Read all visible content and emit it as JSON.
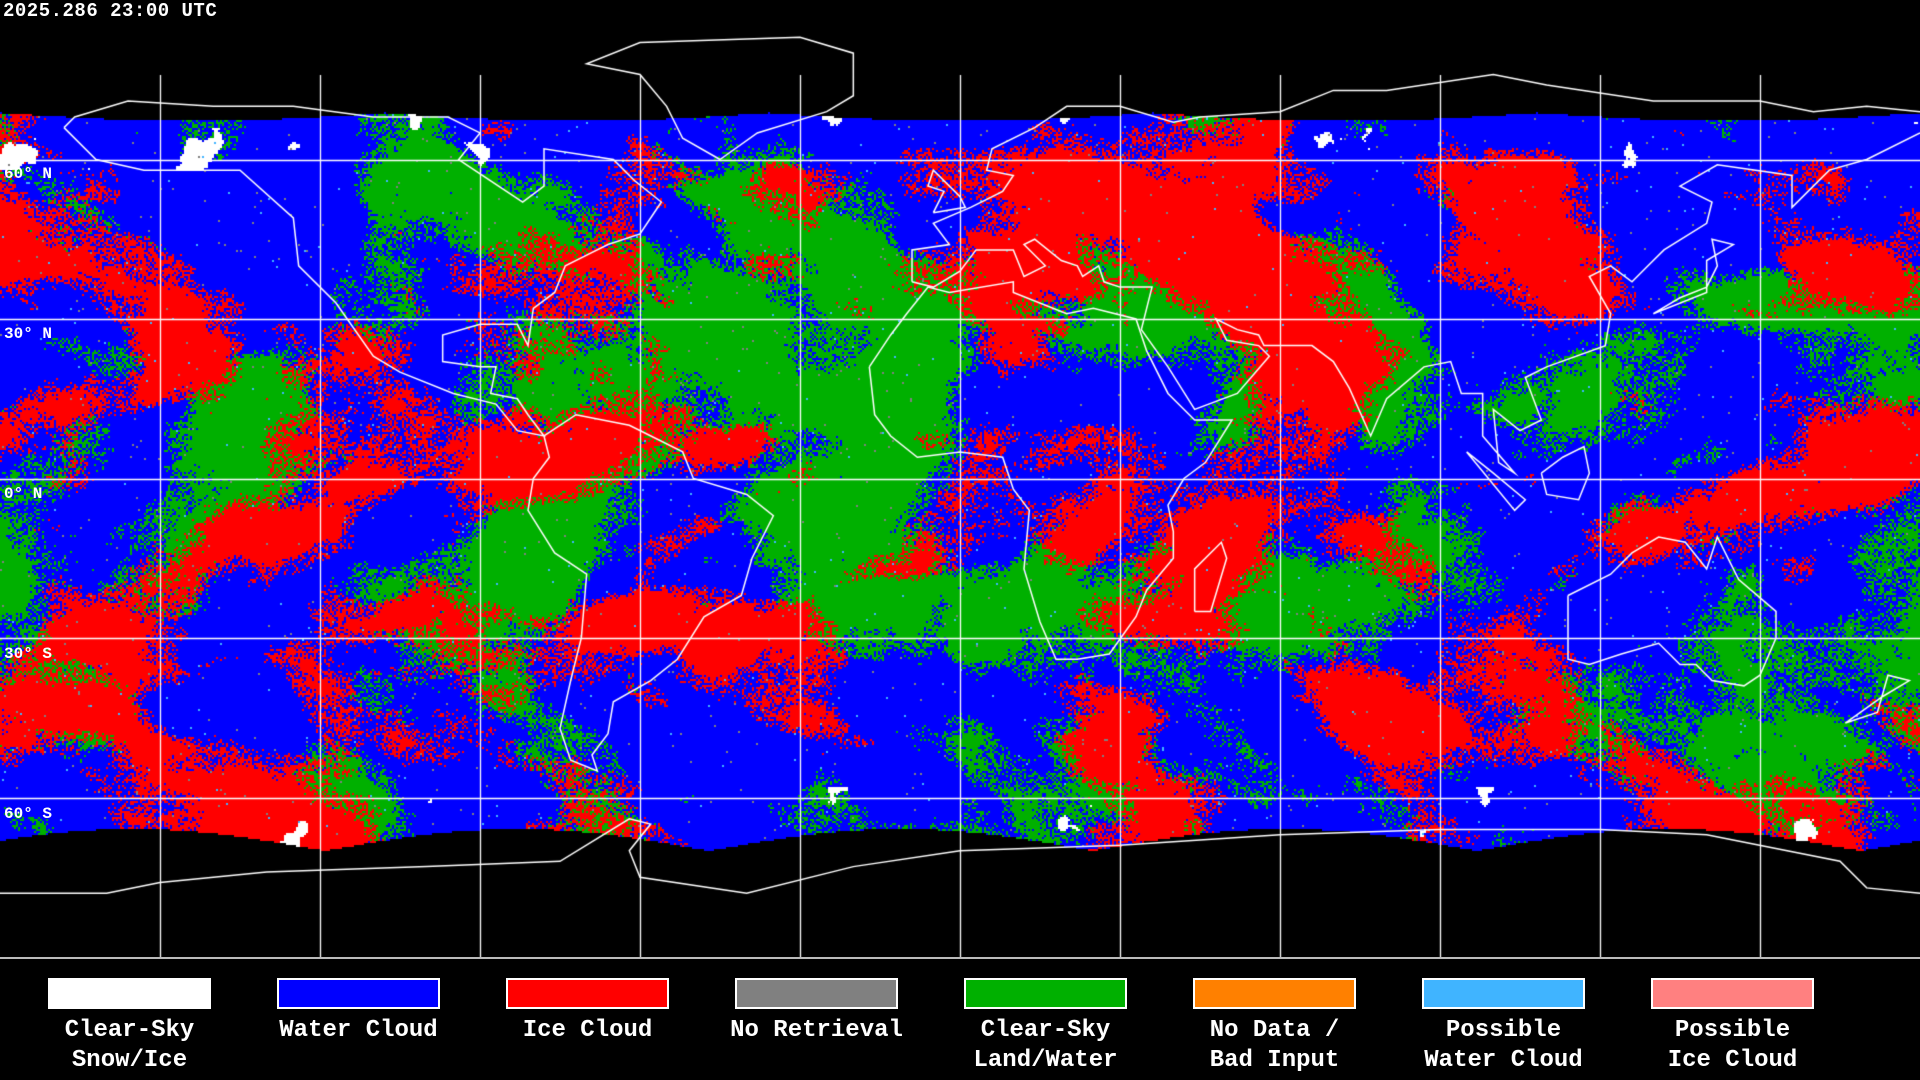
{
  "timestamp": "2025.286 23:00 UTC",
  "map": {
    "projection": "equirectangular",
    "gridline_interval_degrees": 30,
    "latitude_labels": [
      "60° N",
      "30° N",
      "0° N",
      "30° S",
      "60° S"
    ],
    "background_color": "#000000",
    "coastline_color": "#ffffff",
    "gridline_color": "#ffffff"
  },
  "legend": [
    {
      "line1": "Clear-Sky",
      "line2": "Snow/Ice",
      "color": "#ffffff"
    },
    {
      "line1": "Water Cloud",
      "line2": "",
      "color": "#0000ff"
    },
    {
      "line1": "Ice Cloud",
      "line2": "",
      "color": "#ff0000"
    },
    {
      "line1": "No Retrieval",
      "line2": "",
      "color": "#808080"
    },
    {
      "line1": "Clear-Sky",
      "line2": "Land/Water",
      "color": "#00b000"
    },
    {
      "line1": "No Data /",
      "line2": "Bad Input",
      "color": "#ff8000"
    },
    {
      "line1": "Possible",
      "line2": "Water Cloud",
      "color": "#40b4ff"
    },
    {
      "line1": "Possible",
      "line2": "Ice Cloud",
      "color": "#ff8080"
    }
  ]
}
